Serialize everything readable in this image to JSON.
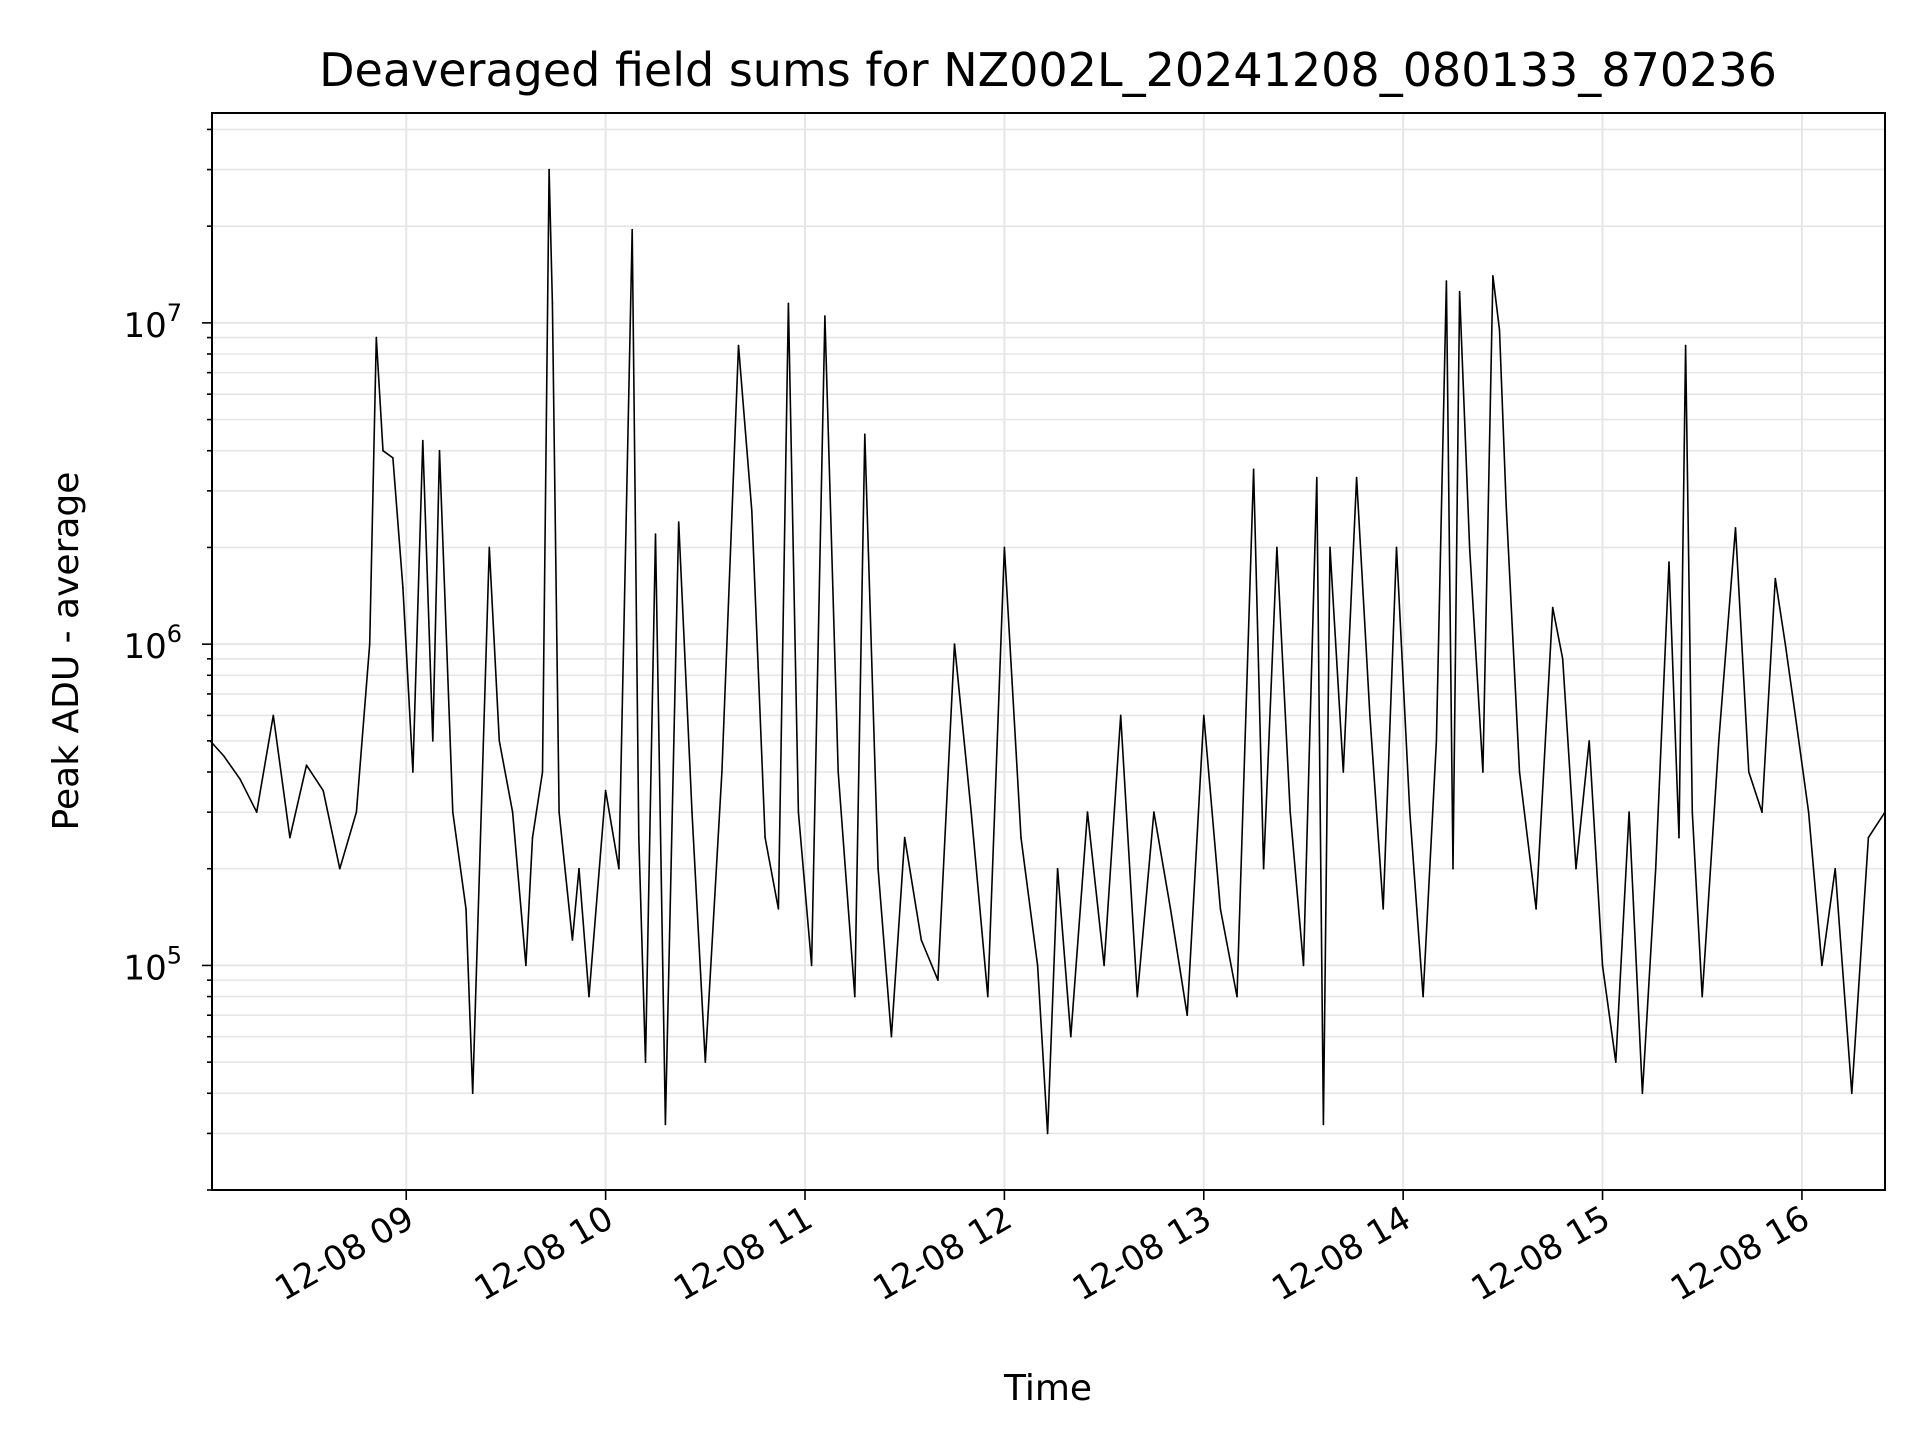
{
  "chart_data": {
    "type": "line",
    "title": "Deaveraged field sums for NZ002L_20241208_080133_870236",
    "xlabel": "Time",
    "ylabel": "Peak ADU - average",
    "yscale": "log",
    "ylim": [
      20000,
      45000000
    ],
    "xlim": [
      "2024-12-08 08:01:33",
      "2024-12-08 16:25:00"
    ],
    "grid": true,
    "legend": "none",
    "x_ticks": [
      "2024-12-08 09:00",
      "2024-12-08 10:00",
      "2024-12-08 11:00",
      "2024-12-08 12:00",
      "2024-12-08 13:00",
      "2024-12-08 14:00",
      "2024-12-08 15:00",
      "2024-12-08 16:00"
    ],
    "x_tick_labels": [
      "12-08 09",
      "12-08 10",
      "12-08 11",
      "12-08 12",
      "12-08 13",
      "12-08 14",
      "12-08 15",
      "12-08 16"
    ],
    "y_ticks": [
      100000,
      1000000,
      10000000
    ],
    "y_tick_labels": [
      {
        "base": "10",
        "exp": "5"
      },
      {
        "base": "10",
        "exp": "6"
      },
      {
        "base": "10",
        "exp": "7"
      }
    ],
    "series": [
      {
        "color": "#000000",
        "points": [
          [
            "2024-12-08 08:01",
            500000
          ],
          [
            "2024-12-08 08:05",
            450000
          ],
          [
            "2024-12-08 08:10",
            380000
          ],
          [
            "2024-12-08 08:15",
            300000
          ],
          [
            "2024-12-08 08:20",
            600000
          ],
          [
            "2024-12-08 08:25",
            250000
          ],
          [
            "2024-12-08 08:30",
            420000
          ],
          [
            "2024-12-08 08:35",
            350000
          ],
          [
            "2024-12-08 08:40",
            200000
          ],
          [
            "2024-12-08 08:45",
            300000
          ],
          [
            "2024-12-08 08:49",
            1000000
          ],
          [
            "2024-12-08 08:50",
            3000000
          ],
          [
            "2024-12-08 08:51",
            9000000
          ],
          [
            "2024-12-08 08:53",
            4000000
          ],
          [
            "2024-12-08 08:56",
            3800000
          ],
          [
            "2024-12-08 08:59",
            1500000
          ],
          [
            "2024-12-08 09:02",
            400000
          ],
          [
            "2024-12-08 09:05",
            4300000
          ],
          [
            "2024-12-08 09:08",
            500000
          ],
          [
            "2024-12-08 09:10",
            4000000
          ],
          [
            "2024-12-08 09:14",
            300000
          ],
          [
            "2024-12-08 09:18",
            150000
          ],
          [
            "2024-12-08 09:20",
            40000
          ],
          [
            "2024-12-08 09:25",
            2000000
          ],
          [
            "2024-12-08 09:28",
            500000
          ],
          [
            "2024-12-08 09:32",
            300000
          ],
          [
            "2024-12-08 09:36",
            100000
          ],
          [
            "2024-12-08 09:38",
            250000
          ],
          [
            "2024-12-08 09:41",
            400000
          ],
          [
            "2024-12-08 09:43",
            30000000
          ],
          [
            "2024-12-08 09:44",
            11500000
          ],
          [
            "2024-12-08 09:46",
            300000
          ],
          [
            "2024-12-08 09:50",
            120000
          ],
          [
            "2024-12-08 09:52",
            200000
          ],
          [
            "2024-12-08 09:55",
            80000
          ],
          [
            "2024-12-08 10:00",
            350000
          ],
          [
            "2024-12-08 10:04",
            200000
          ],
          [
            "2024-12-08 10:08",
            19500000
          ],
          [
            "2024-12-08 10:10",
            250000
          ],
          [
            "2024-12-08 10:12",
            50000
          ],
          [
            "2024-12-08 10:15",
            2200000
          ],
          [
            "2024-12-08 10:18",
            32000
          ],
          [
            "2024-12-08 10:22",
            2400000
          ],
          [
            "2024-12-08 10:26",
            300000
          ],
          [
            "2024-12-08 10:30",
            50000
          ],
          [
            "2024-12-08 10:35",
            400000
          ],
          [
            "2024-12-08 10:40",
            8500000
          ],
          [
            "2024-12-08 10:44",
            2600000
          ],
          [
            "2024-12-08 10:48",
            250000
          ],
          [
            "2024-12-08 10:52",
            150000
          ],
          [
            "2024-12-08 10:55",
            11500000
          ],
          [
            "2024-12-08 10:58",
            300000
          ],
          [
            "2024-12-08 11:02",
            100000
          ],
          [
            "2024-12-08 11:06",
            10500000
          ],
          [
            "2024-12-08 11:10",
            400000
          ],
          [
            "2024-12-08 11:15",
            80000
          ],
          [
            "2024-12-08 11:18",
            4500000
          ],
          [
            "2024-12-08 11:22",
            200000
          ],
          [
            "2024-12-08 11:26",
            60000
          ],
          [
            "2024-12-08 11:30",
            250000
          ],
          [
            "2024-12-08 11:35",
            120000
          ],
          [
            "2024-12-08 11:40",
            90000
          ],
          [
            "2024-12-08 11:45",
            1000000
          ],
          [
            "2024-12-08 11:50",
            300000
          ],
          [
            "2024-12-08 11:55",
            80000
          ],
          [
            "2024-12-08 12:00",
            2000000
          ],
          [
            "2024-12-08 12:05",
            250000
          ],
          [
            "2024-12-08 12:10",
            100000
          ],
          [
            "2024-12-08 12:13",
            30000
          ],
          [
            "2024-12-08 12:16",
            200000
          ],
          [
            "2024-12-08 12:20",
            60000
          ],
          [
            "2024-12-08 12:25",
            300000
          ],
          [
            "2024-12-08 12:30",
            100000
          ],
          [
            "2024-12-08 12:35",
            600000
          ],
          [
            "2024-12-08 12:40",
            80000
          ],
          [
            "2024-12-08 12:45",
            300000
          ],
          [
            "2024-12-08 12:50",
            150000
          ],
          [
            "2024-12-08 12:55",
            70000
          ],
          [
            "2024-12-08 13:00",
            600000
          ],
          [
            "2024-12-08 13:05",
            150000
          ],
          [
            "2024-12-08 13:10",
            80000
          ],
          [
            "2024-12-08 13:15",
            3500000
          ],
          [
            "2024-12-08 13:18",
            200000
          ],
          [
            "2024-12-08 13:22",
            2000000
          ],
          [
            "2024-12-08 13:26",
            300000
          ],
          [
            "2024-12-08 13:30",
            100000
          ],
          [
            "2024-12-08 13:34",
            3300000
          ],
          [
            "2024-12-08 13:36",
            32000
          ],
          [
            "2024-12-08 13:38",
            2000000
          ],
          [
            "2024-12-08 13:42",
            400000
          ],
          [
            "2024-12-08 13:46",
            3300000
          ],
          [
            "2024-12-08 13:50",
            600000
          ],
          [
            "2024-12-08 13:54",
            150000
          ],
          [
            "2024-12-08 13:58",
            2000000
          ],
          [
            "2024-12-08 14:02",
            300000
          ],
          [
            "2024-12-08 14:06",
            80000
          ],
          [
            "2024-12-08 14:10",
            500000
          ],
          [
            "2024-12-08 14:13",
            13500000
          ],
          [
            "2024-12-08 14:15",
            200000
          ],
          [
            "2024-12-08 14:17",
            12500000
          ],
          [
            "2024-12-08 14:20",
            2000000
          ],
          [
            "2024-12-08 14:24",
            400000
          ],
          [
            "2024-12-08 14:27",
            14000000
          ],
          [
            "2024-12-08 14:29",
            9500000
          ],
          [
            "2024-12-08 14:31",
            2700000
          ],
          [
            "2024-12-08 14:35",
            400000
          ],
          [
            "2024-12-08 14:40",
            150000
          ],
          [
            "2024-12-08 14:45",
            1300000
          ],
          [
            "2024-12-08 14:48",
            900000
          ],
          [
            "2024-12-08 14:52",
            200000
          ],
          [
            "2024-12-08 14:56",
            500000
          ],
          [
            "2024-12-08 15:00",
            100000
          ],
          [
            "2024-12-08 15:04",
            50000
          ],
          [
            "2024-12-08 15:08",
            300000
          ],
          [
            "2024-12-08 15:12",
            40000
          ],
          [
            "2024-12-08 15:16",
            200000
          ],
          [
            "2024-12-08 15:20",
            1800000
          ],
          [
            "2024-12-08 15:23",
            250000
          ],
          [
            "2024-12-08 15:25",
            8500000
          ],
          [
            "2024-12-08 15:27",
            300000
          ],
          [
            "2024-12-08 15:30",
            80000
          ],
          [
            "2024-12-08 15:35",
            500000
          ],
          [
            "2024-12-08 15:40",
            2300000
          ],
          [
            "2024-12-08 15:44",
            400000
          ],
          [
            "2024-12-08 15:48",
            300000
          ],
          [
            "2024-12-08 15:52",
            1600000
          ],
          [
            "2024-12-08 15:55",
            1000000
          ],
          [
            "2024-12-08 15:58",
            600000
          ],
          [
            "2024-12-08 16:02",
            300000
          ],
          [
            "2024-12-08 16:06",
            100000
          ],
          [
            "2024-12-08 16:10",
            200000
          ],
          [
            "2024-12-08 16:15",
            40000
          ],
          [
            "2024-12-08 16:20",
            250000
          ],
          [
            "2024-12-08 16:25",
            300000
          ]
        ]
      }
    ]
  }
}
